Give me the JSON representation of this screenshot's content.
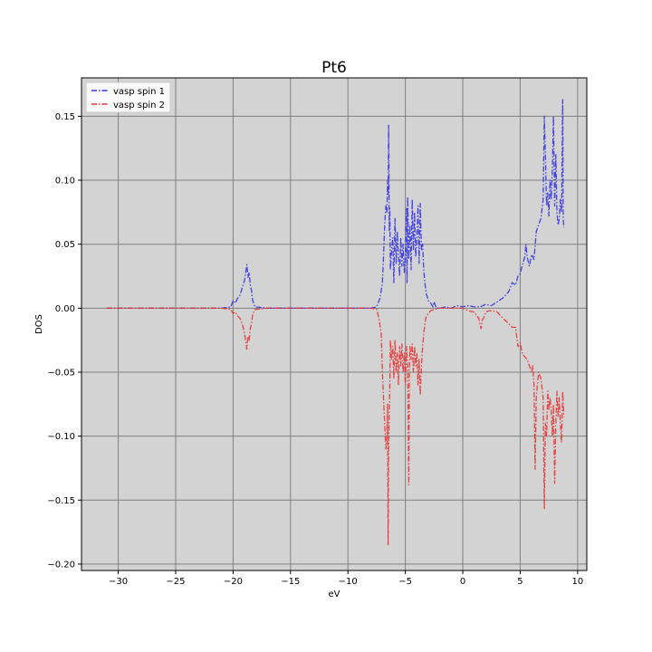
{
  "chart_data": {
    "type": "line",
    "title": "Pt6",
    "xlabel": "eV",
    "ylabel": "DOS",
    "xlim": [
      -33.2,
      10.8
    ],
    "ylim": [
      -0.205,
      0.18
    ],
    "xticks": [
      -30,
      -25,
      -20,
      -15,
      -10,
      -5,
      0,
      5,
      10
    ],
    "xtick_labels": [
      "−30",
      "−25",
      "−20",
      "−15",
      "−10",
      "−5",
      "0",
      "5",
      "10"
    ],
    "yticks": [
      -0.2,
      -0.15,
      -0.1,
      -0.05,
      0.0,
      0.05,
      0.1,
      0.15
    ],
    "ytick_labels": [
      "−0.20",
      "−0.15",
      "−0.10",
      "−0.05",
      "0.00",
      "0.05",
      "0.10",
      "0.15"
    ],
    "grid": true,
    "background": "#d3d3d3",
    "legend_position": "top-left",
    "series": [
      {
        "name": "vasp spin 1",
        "color": "#3333e0",
        "linestyle": "dash-dot",
        "points": [
          [
            -31,
            0
          ],
          [
            -21,
            0
          ],
          [
            -20.2,
            0.001
          ],
          [
            -20,
            0.006
          ],
          [
            -19.8,
            0.004
          ],
          [
            -19.6,
            0.008
          ],
          [
            -19.4,
            0.01
          ],
          [
            -19.2,
            0.016
          ],
          [
            -19,
            0.022
          ],
          [
            -18.9,
            0.028
          ],
          [
            -18.8,
            0.034
          ],
          [
            -18.7,
            0.024
          ],
          [
            -18.6,
            0.028
          ],
          [
            -18.5,
            0.018
          ],
          [
            -18.4,
            0.014
          ],
          [
            -18.3,
            0.006
          ],
          [
            -18.1,
            0.001
          ],
          [
            -17,
            0
          ],
          [
            -8,
            0
          ],
          [
            -7.5,
            0.001
          ],
          [
            -7.2,
            0.008
          ],
          [
            -7,
            0.02
          ],
          [
            -6.9,
            0.04
          ],
          [
            -6.8,
            0.065
          ],
          [
            -6.7,
            0.08
          ],
          [
            -6.6,
            0.075
          ],
          [
            -6.55,
            0.1
          ],
          [
            -6.5,
            0.088
          ],
          [
            -6.45,
            0.143
          ],
          [
            -6.4,
            0.06
          ],
          [
            -6.35,
            0.078
          ],
          [
            -6.3,
            0.03
          ],
          [
            -6.2,
            0.045
          ],
          [
            -6.1,
            0.055
          ],
          [
            -6,
            0.02
          ],
          [
            -5.9,
            0.07
          ],
          [
            -5.8,
            0.035
          ],
          [
            -5.7,
            0.06
          ],
          [
            -5.6,
            0.04
          ],
          [
            -5.5,
            0.025
          ],
          [
            -5.4,
            0.055
          ],
          [
            -5.3,
            0.033
          ],
          [
            -5.2,
            0.05
          ],
          [
            -5.1,
            0.028
          ],
          [
            -5.0,
            0.04
          ],
          [
            -4.9,
            0.078
          ],
          [
            -4.85,
            0.02
          ],
          [
            -4.8,
            0.087
          ],
          [
            -4.7,
            0.038
          ],
          [
            -4.6,
            0.065
          ],
          [
            -4.5,
            0.03
          ],
          [
            -4.4,
            0.085
          ],
          [
            -4.3,
            0.045
          ],
          [
            -4.2,
            0.075
          ],
          [
            -4.1,
            0.04
          ],
          [
            -4,
            0.055
          ],
          [
            -3.9,
            0.08
          ],
          [
            -3.8,
            0.035
          ],
          [
            -3.7,
            0.082
          ],
          [
            -3.6,
            0.045
          ],
          [
            -3.5,
            0.05
          ],
          [
            -3.4,
            0.03
          ],
          [
            -3.3,
            0.02
          ],
          [
            -3.2,
            0.012
          ],
          [
            -3.0,
            0.006
          ],
          [
            -2.8,
            0.004
          ],
          [
            -2.6,
            0.001
          ],
          [
            -2.5,
            0.005
          ],
          [
            -2.3,
            0
          ],
          [
            -2.0,
            0
          ],
          [
            -1.5,
            0.001
          ],
          [
            -1,
            0.0
          ],
          [
            -0.5,
            0.002
          ],
          [
            0,
            0.001
          ],
          [
            0.5,
            0.002
          ],
          [
            1,
            0.001
          ],
          [
            1.5,
            0.001
          ],
          [
            2,
            0.003
          ],
          [
            2.5,
            0.002
          ],
          [
            3,
            0.005
          ],
          [
            3.5,
            0.008
          ],
          [
            4,
            0.013
          ],
          [
            4.3,
            0.02
          ],
          [
            4.6,
            0.018
          ],
          [
            4.8,
            0.025
          ],
          [
            5,
            0.027
          ],
          [
            5.2,
            0.034
          ],
          [
            5.4,
            0.04
          ],
          [
            5.5,
            0.05
          ],
          [
            5.6,
            0.04
          ],
          [
            5.8,
            0.033
          ],
          [
            6,
            0.042
          ],
          [
            6.2,
            0.038
          ],
          [
            6.4,
            0.06
          ],
          [
            6.6,
            0.065
          ],
          [
            6.8,
            0.07
          ],
          [
            7.0,
            0.085
          ],
          [
            7.1,
            0.15
          ],
          [
            7.2,
            0.12
          ],
          [
            7.3,
            0.08
          ],
          [
            7.4,
            0.09
          ],
          [
            7.5,
            0.072
          ],
          [
            7.6,
            0.1
          ],
          [
            7.7,
            0.085
          ],
          [
            7.8,
            0.11
          ],
          [
            7.9,
            0.15
          ],
          [
            8.0,
            0.08
          ],
          [
            8.1,
            0.12
          ],
          [
            8.2,
            0.075
          ],
          [
            8.3,
            0.065
          ],
          [
            8.4,
            0.07
          ],
          [
            8.5,
            0.085
          ],
          [
            8.6,
            0.075
          ],
          [
            8.7,
            0.163
          ],
          [
            8.75,
            0.07
          ],
          [
            8.8,
            0.063
          ]
        ]
      },
      {
        "name": "vasp spin 2",
        "color": "#e83333",
        "linestyle": "dash-dot",
        "points": [
          [
            -31,
            0
          ],
          [
            -21,
            0
          ],
          [
            -20.2,
            -0.001
          ],
          [
            -20,
            -0.004
          ],
          [
            -19.8,
            -0.003
          ],
          [
            -19.6,
            -0.006
          ],
          [
            -19.4,
            -0.008
          ],
          [
            -19.2,
            -0.012
          ],
          [
            -19,
            -0.02
          ],
          [
            -18.9,
            -0.026
          ],
          [
            -18.8,
            -0.032
          ],
          [
            -18.7,
            -0.022
          ],
          [
            -18.6,
            -0.025
          ],
          [
            -18.5,
            -0.016
          ],
          [
            -18.4,
            -0.012
          ],
          [
            -18.3,
            -0.005
          ],
          [
            -18.1,
            -0.001
          ],
          [
            -17,
            0
          ],
          [
            -8,
            0
          ],
          [
            -7.5,
            -0.001
          ],
          [
            -7.3,
            -0.008
          ],
          [
            -7.1,
            -0.02
          ],
          [
            -7.0,
            -0.05
          ],
          [
            -6.9,
            -0.07
          ],
          [
            -6.8,
            -0.09
          ],
          [
            -6.7,
            -0.11
          ],
          [
            -6.6,
            -0.1
          ],
          [
            -6.55,
            -0.075
          ],
          [
            -6.5,
            -0.185
          ],
          [
            -6.45,
            -0.11
          ],
          [
            -6.4,
            -0.08
          ],
          [
            -6.35,
            -0.06
          ],
          [
            -6.3,
            -0.025
          ],
          [
            -6.2,
            -0.04
          ],
          [
            -6.1,
            -0.03
          ],
          [
            -6,
            -0.055
          ],
          [
            -5.9,
            -0.025
          ],
          [
            -5.8,
            -0.05
          ],
          [
            -5.7,
            -0.035
          ],
          [
            -5.6,
            -0.06
          ],
          [
            -5.5,
            -0.03
          ],
          [
            -5.4,
            -0.045
          ],
          [
            -5.3,
            -0.028
          ],
          [
            -5.2,
            -0.05
          ],
          [
            -5.1,
            -0.035
          ],
          [
            -5.0,
            -0.06
          ],
          [
            -4.9,
            -0.03
          ],
          [
            -4.8,
            -0.045
          ],
          [
            -4.7,
            -0.138
          ],
          [
            -4.65,
            -0.05
          ],
          [
            -4.6,
            -0.03
          ],
          [
            -4.5,
            -0.04
          ],
          [
            -4.4,
            -0.028
          ],
          [
            -4.3,
            -0.05
          ],
          [
            -4.2,
            -0.03
          ],
          [
            -4.1,
            -0.045
          ],
          [
            -4,
            -0.035
          ],
          [
            -3.9,
            -0.06
          ],
          [
            -3.8,
            -0.04
          ],
          [
            -3.7,
            -0.068
          ],
          [
            -3.6,
            -0.045
          ],
          [
            -3.5,
            -0.03
          ],
          [
            -3.4,
            -0.02
          ],
          [
            -3.3,
            -0.012
          ],
          [
            -3.2,
            -0.007
          ],
          [
            -3.0,
            -0.004
          ],
          [
            -2.8,
            -0.002
          ],
          [
            -2.5,
            -0.001
          ],
          [
            -2,
            0
          ],
          [
            -1,
            0
          ],
          [
            0,
            0.0
          ],
          [
            0.5,
            -0.002
          ],
          [
            1,
            -0.003
          ],
          [
            1.2,
            -0.006
          ],
          [
            1.4,
            -0.008
          ],
          [
            1.5,
            -0.013
          ],
          [
            1.6,
            -0.016
          ],
          [
            1.7,
            -0.009
          ],
          [
            1.8,
            -0.008
          ],
          [
            2,
            -0.003
          ],
          [
            2.3,
            -0.002
          ],
          [
            2.6,
            -0.002
          ],
          [
            3,
            -0.003
          ],
          [
            3.5,
            -0.008
          ],
          [
            4,
            -0.012
          ],
          [
            4.3,
            -0.015
          ],
          [
            4.6,
            -0.015
          ],
          [
            4.8,
            -0.03
          ],
          [
            5,
            -0.027
          ],
          [
            5.2,
            -0.036
          ],
          [
            5.4,
            -0.038
          ],
          [
            5.6,
            -0.04
          ],
          [
            5.8,
            -0.045
          ],
          [
            6,
            -0.05
          ],
          [
            6.1,
            -0.045
          ],
          [
            6.2,
            -0.06
          ],
          [
            6.3,
            -0.126
          ],
          [
            6.4,
            -0.07
          ],
          [
            6.6,
            -0.05
          ],
          [
            6.8,
            -0.055
          ],
          [
            7.0,
            -0.07
          ],
          [
            7.1,
            -0.157
          ],
          [
            7.2,
            -0.09
          ],
          [
            7.3,
            -0.1
          ],
          [
            7.4,
            -0.065
          ],
          [
            7.5,
            -0.08
          ],
          [
            7.6,
            -0.07
          ],
          [
            7.7,
            -0.08
          ],
          [
            7.8,
            -0.1
          ],
          [
            7.9,
            -0.075
          ],
          [
            8.0,
            -0.137
          ],
          [
            8.1,
            -0.09
          ],
          [
            8.2,
            -0.065
          ],
          [
            8.3,
            -0.085
          ],
          [
            8.4,
            -0.07
          ],
          [
            8.5,
            -0.09
          ],
          [
            8.6,
            -0.105
          ],
          [
            8.7,
            -0.065
          ],
          [
            8.8,
            -0.085
          ]
        ]
      }
    ]
  }
}
